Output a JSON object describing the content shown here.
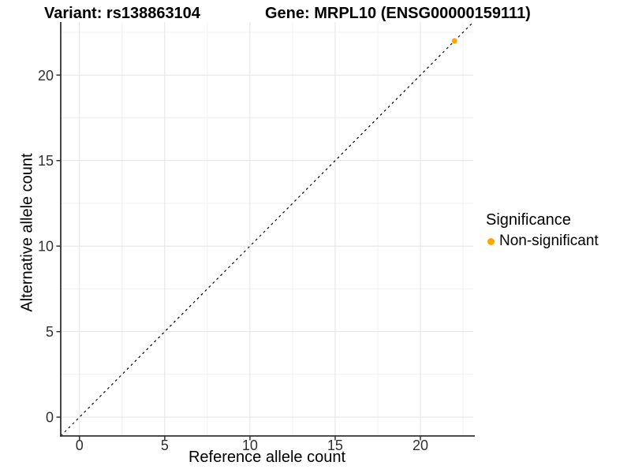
{
  "chart_data": {
    "type": "scatter",
    "titles": {
      "left": "Variant: rs138863104",
      "right": "Gene: MRPL10 (ENSG00000159111)"
    },
    "xlabel": "Reference allele count",
    "ylabel": "Alternative allele count",
    "xlim": [
      -1.1,
      23.1
    ],
    "ylim": [
      -1.1,
      23.1
    ],
    "xticks": [
      0,
      5,
      10,
      15,
      20
    ],
    "yticks": [
      0,
      5,
      10,
      15,
      20
    ],
    "minor_ticks": [
      2.5,
      7.5,
      12.5,
      17.5,
      22.5
    ],
    "grid": "major+minor",
    "reference_line": {
      "type": "identity",
      "slope": 1,
      "intercept": 0,
      "style": "dashed",
      "color": "#000000"
    },
    "series": [
      {
        "name": "Non-significant",
        "color": "#FFA500",
        "marker": "circle",
        "points": [
          {
            "x": 22,
            "y": 22
          }
        ]
      }
    ],
    "legend": {
      "position": "right",
      "title": "Significance",
      "items": [
        {
          "label": "Non-significant",
          "color": "#FFA500"
        }
      ]
    },
    "colors": {
      "axis_line": "#333333",
      "tick_mark": "#333333",
      "tick_text": "#303030",
      "grid_major": "#e3e3e3",
      "grid_minor": "#f1f1f1",
      "background": "#ffffff"
    }
  }
}
